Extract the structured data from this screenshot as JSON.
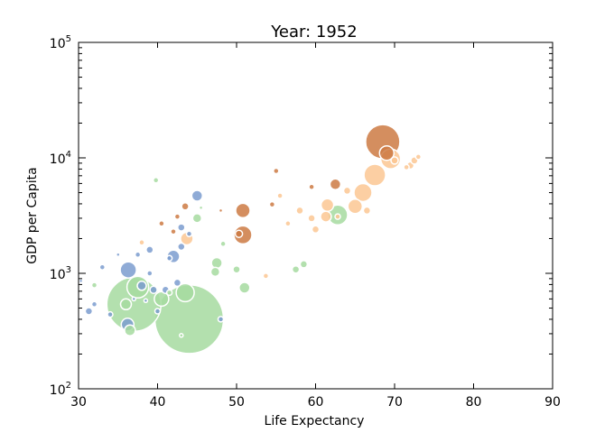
{
  "chart_data": {
    "type": "scatter",
    "title": "Year: 1952",
    "xlabel": "Life Expectancy",
    "ylabel": "GDP per Capita",
    "xlim": [
      30,
      90
    ],
    "ylim": [
      100,
      100000
    ],
    "y_scale": "log",
    "x_ticks": [
      "30",
      "40",
      "50",
      "60",
      "70",
      "80",
      "90"
    ],
    "y_ticks": [
      {
        "value": 100,
        "base": "10",
        "exp": "2"
      },
      {
        "value": 1000,
        "base": "10",
        "exp": "3"
      },
      {
        "value": 10000,
        "base": "10",
        "exp": "4"
      },
      {
        "value": 100000,
        "base": "10",
        "exp": "5"
      }
    ],
    "grid": false,
    "marker_edge_color": "#ffffff",
    "series": [
      {
        "color": "#7b9ccf",
        "points": [
          {
            "x": 36.3,
            "y": 1070,
            "size": 9
          },
          {
            "x": 36.2,
            "y": 360,
            "size": 7
          },
          {
            "x": 42.0,
            "y": 1400,
            "size": 7
          },
          {
            "x": 45.0,
            "y": 4700,
            "size": 6
          },
          {
            "x": 31.3,
            "y": 470,
            "size": 4
          },
          {
            "x": 33.0,
            "y": 1130,
            "size": 3
          },
          {
            "x": 32.0,
            "y": 540,
            "size": 3
          },
          {
            "x": 34.0,
            "y": 440,
            "size": 3
          },
          {
            "x": 38.0,
            "y": 780,
            "size": 5
          },
          {
            "x": 39.5,
            "y": 720,
            "size": 4
          },
          {
            "x": 41.0,
            "y": 720,
            "size": 4
          },
          {
            "x": 42.5,
            "y": 830,
            "size": 4
          },
          {
            "x": 43.0,
            "y": 1700,
            "size": 4
          },
          {
            "x": 43.0,
            "y": 2500,
            "size": 4
          },
          {
            "x": 39.0,
            "y": 1600,
            "size": 4
          },
          {
            "x": 37.5,
            "y": 1450,
            "size": 3
          },
          {
            "x": 40.0,
            "y": 470,
            "size": 3
          },
          {
            "x": 41.5,
            "y": 1350,
            "size": 3
          },
          {
            "x": 44.0,
            "y": 2200,
            "size": 3
          },
          {
            "x": 39.0,
            "y": 1000,
            "size": 3
          },
          {
            "x": 48.0,
            "y": 400,
            "size": 3
          },
          {
            "x": 35.0,
            "y": 1450,
            "size": 2
          },
          {
            "x": 30.3,
            "y": 860,
            "size": 2
          },
          {
            "x": 37.0,
            "y": 600,
            "size": 2
          },
          {
            "x": 38.5,
            "y": 580,
            "size": 2
          }
        ]
      },
      {
        "color": "#a6dba0",
        "points": [
          {
            "x": 44.0,
            "y": 400,
            "size": 38
          },
          {
            "x": 37.0,
            "y": 540,
            "size": 30
          },
          {
            "x": 37.5,
            "y": 760,
            "size": 12
          },
          {
            "x": 43.5,
            "y": 680,
            "size": 10
          },
          {
            "x": 40.5,
            "y": 600,
            "size": 8
          },
          {
            "x": 36.5,
            "y": 320,
            "size": 6
          },
          {
            "x": 36.0,
            "y": 540,
            "size": 6
          },
          {
            "x": 62.8,
            "y": 3200,
            "size": 11
          },
          {
            "x": 47.5,
            "y": 1230,
            "size": 6
          },
          {
            "x": 51.0,
            "y": 750,
            "size": 6
          },
          {
            "x": 45.0,
            "y": 3000,
            "size": 5
          },
          {
            "x": 47.3,
            "y": 1030,
            "size": 5
          },
          {
            "x": 50.0,
            "y": 1080,
            "size": 4
          },
          {
            "x": 58.5,
            "y": 1200,
            "size": 4
          },
          {
            "x": 57.5,
            "y": 1080,
            "size": 4
          },
          {
            "x": 48.3,
            "y": 1800,
            "size": 3
          },
          {
            "x": 39.8,
            "y": 6400,
            "size": 3
          },
          {
            "x": 41.5,
            "y": 680,
            "size": 3
          },
          {
            "x": 32.0,
            "y": 790,
            "size": 3
          },
          {
            "x": 45.5,
            "y": 3700,
            "size": 2
          },
          {
            "x": 43.0,
            "y": 290,
            "size": 2
          }
        ]
      },
      {
        "color": "#cc7a43",
        "points": [
          {
            "x": 68.5,
            "y": 13800,
            "size": 19
          },
          {
            "x": 50.8,
            "y": 2150,
            "size": 10
          },
          {
            "x": 50.8,
            "y": 3500,
            "size": 8
          },
          {
            "x": 69.0,
            "y": 11000,
            "size": 8
          },
          {
            "x": 62.5,
            "y": 5900,
            "size": 6
          },
          {
            "x": 55.0,
            "y": 7700,
            "size": 3
          },
          {
            "x": 59.5,
            "y": 5600,
            "size": 3
          },
          {
            "x": 43.5,
            "y": 3800,
            "size": 4
          },
          {
            "x": 42.5,
            "y": 3100,
            "size": 3
          },
          {
            "x": 40.5,
            "y": 2700,
            "size": 3
          },
          {
            "x": 42.0,
            "y": 2300,
            "size": 3
          },
          {
            "x": 54.5,
            "y": 3950,
            "size": 3
          },
          {
            "x": 48.0,
            "y": 3500,
            "size": 2
          },
          {
            "x": 50.3,
            "y": 2200,
            "size": 4
          }
        ]
      },
      {
        "color": "#fbc793",
        "points": [
          {
            "x": 67.5,
            "y": 7100,
            "size": 12
          },
          {
            "x": 69.5,
            "y": 9800,
            "size": 11
          },
          {
            "x": 66.0,
            "y": 5000,
            "size": 10
          },
          {
            "x": 65.0,
            "y": 3800,
            "size": 8
          },
          {
            "x": 61.5,
            "y": 3900,
            "size": 7
          },
          {
            "x": 61.3,
            "y": 3100,
            "size": 6
          },
          {
            "x": 43.7,
            "y": 2000,
            "size": 7
          },
          {
            "x": 72.0,
            "y": 8600,
            "size": 4
          },
          {
            "x": 72.5,
            "y": 9500,
            "size": 4
          },
          {
            "x": 70.0,
            "y": 9500,
            "size": 4
          },
          {
            "x": 64.0,
            "y": 5200,
            "size": 4
          },
          {
            "x": 66.5,
            "y": 3500,
            "size": 4
          },
          {
            "x": 60.0,
            "y": 2400,
            "size": 4
          },
          {
            "x": 59.5,
            "y": 3000,
            "size": 4
          },
          {
            "x": 58.0,
            "y": 3500,
            "size": 4
          },
          {
            "x": 53.7,
            "y": 950,
            "size": 3
          },
          {
            "x": 56.5,
            "y": 2700,
            "size": 3
          },
          {
            "x": 62.8,
            "y": 3100,
            "size": 3
          },
          {
            "x": 73.0,
            "y": 10200,
            "size": 3
          },
          {
            "x": 71.5,
            "y": 8300,
            "size": 3
          },
          {
            "x": 55.5,
            "y": 4700,
            "size": 3
          },
          {
            "x": 38.0,
            "y": 1850,
            "size": 3
          }
        ]
      }
    ]
  }
}
